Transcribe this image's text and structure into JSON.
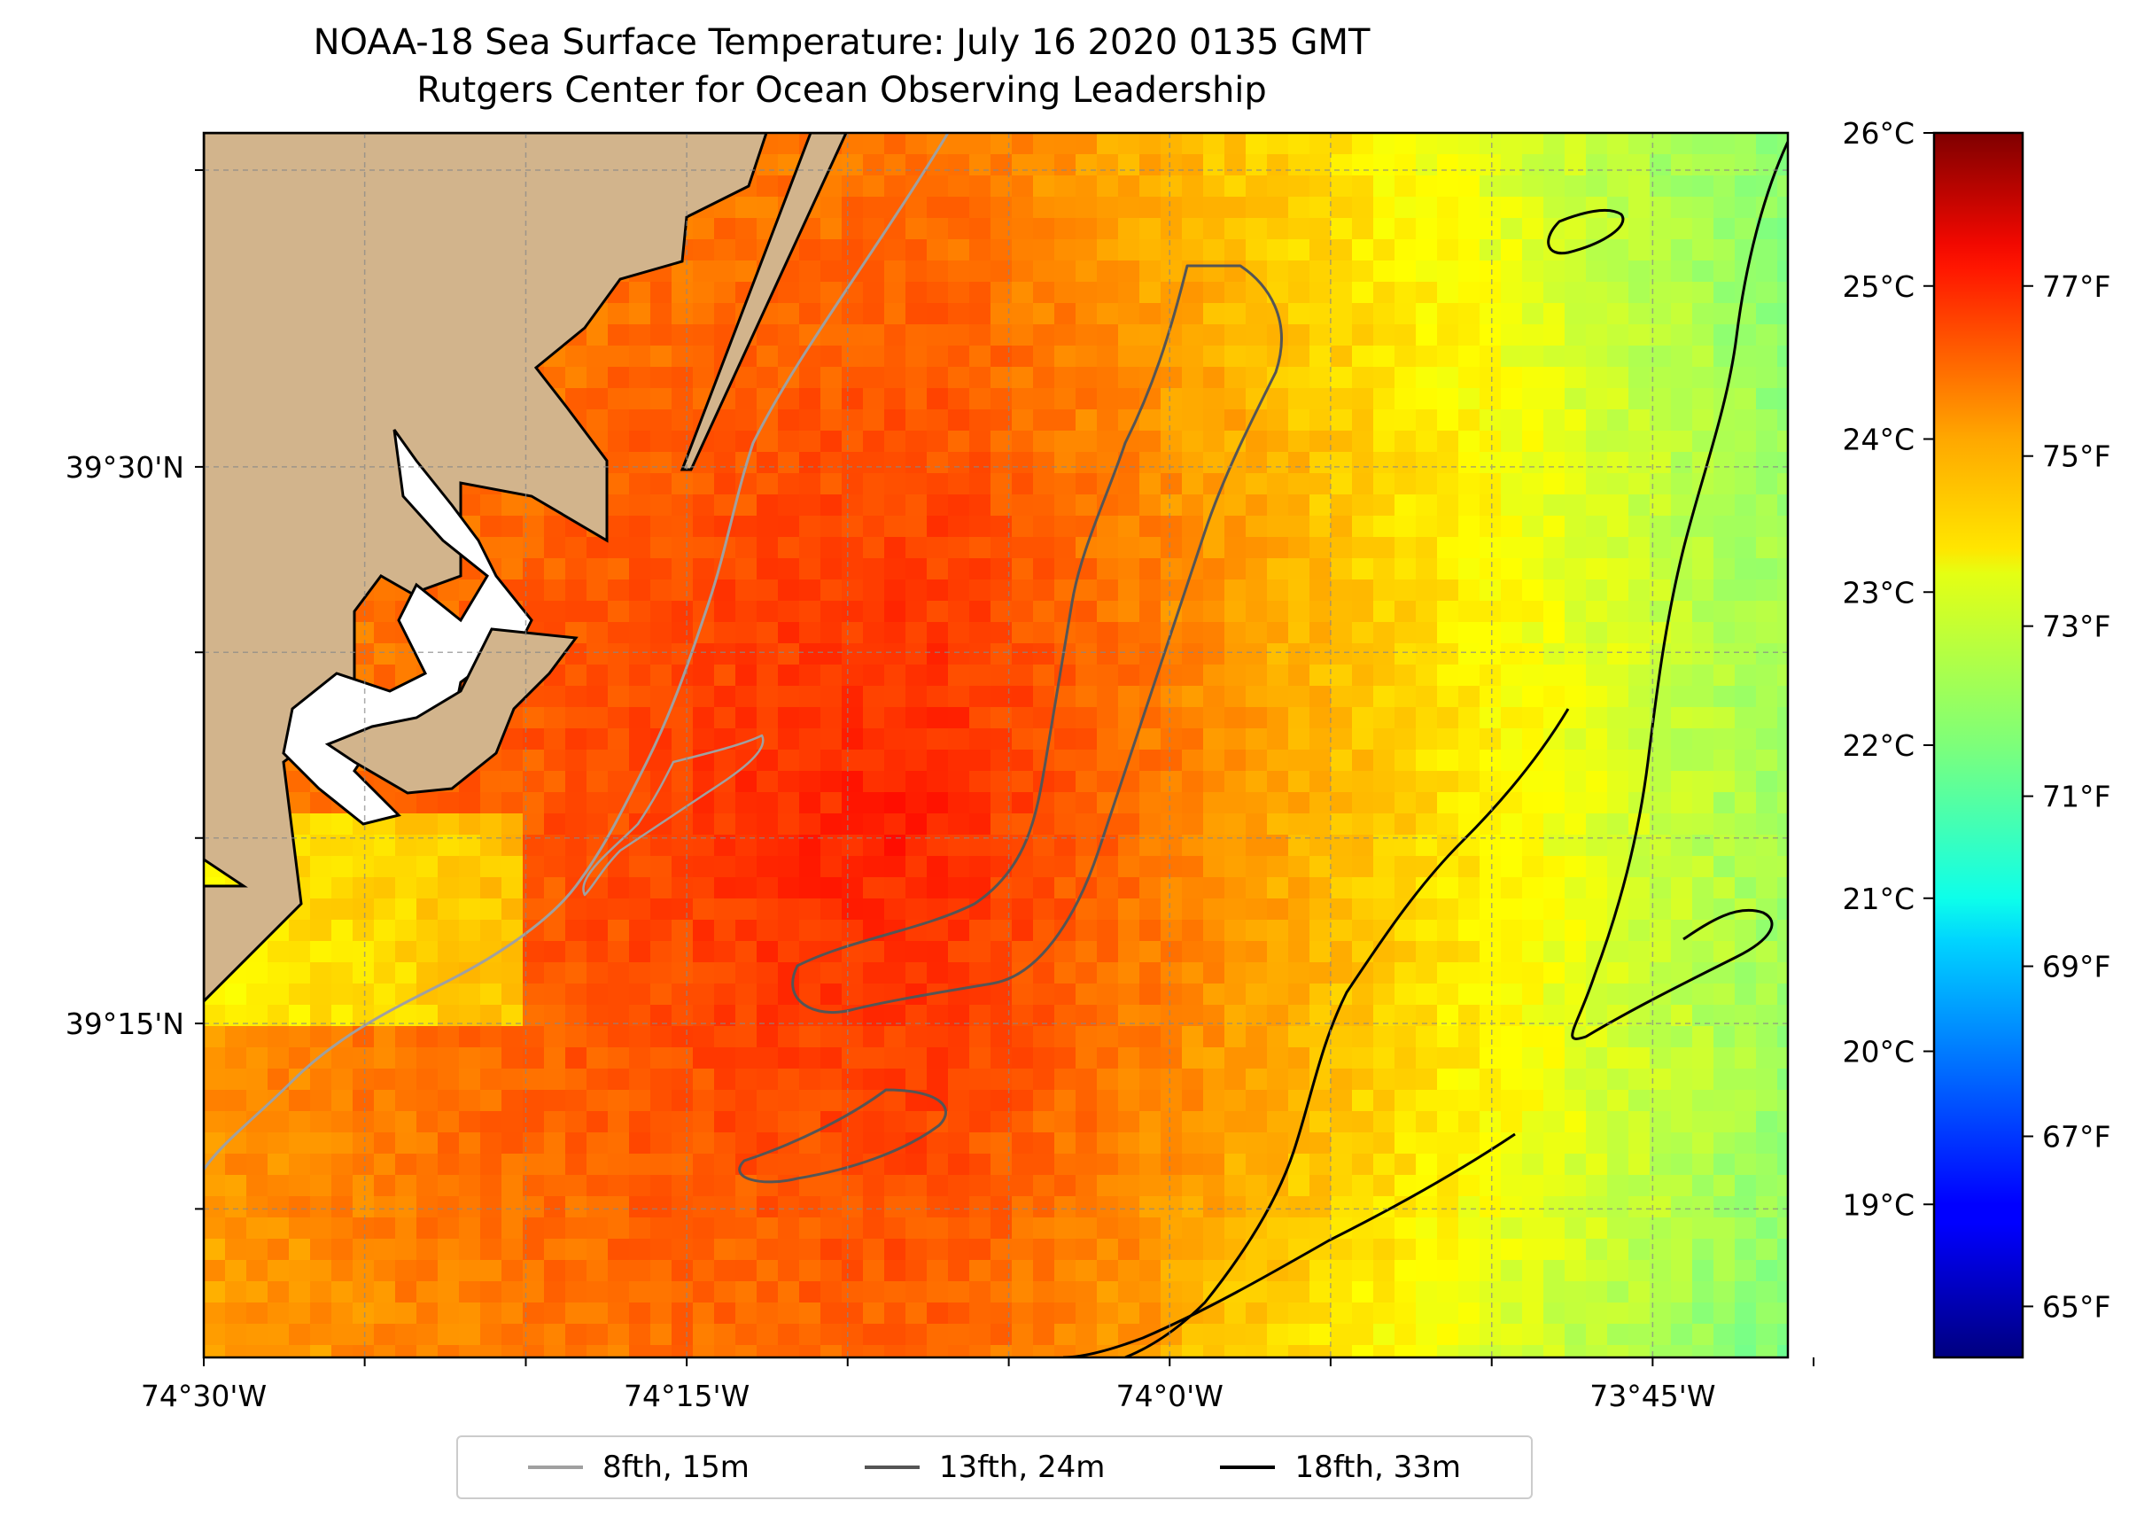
{
  "title": {
    "line1": "NOAA-18 Sea Surface Temperature: July 16 2020 0135 GMT",
    "line2": "Rutgers Center for Ocean Observing Leadership"
  },
  "map": {
    "lon_range": [
      -74.5,
      -73.68
    ],
    "lat_range": [
      39.1,
      39.65
    ],
    "lon_ticks": [
      {
        "value": -74.5,
        "label": "74°30'W"
      },
      {
        "value": -74.25,
        "label": "74°15'W"
      },
      {
        "value": -74.0,
        "label": "74°0'W"
      },
      {
        "value": -73.75,
        "label": "73°45'W"
      }
    ],
    "lat_ticks": [
      {
        "value": 39.5,
        "label": "39°30'N"
      },
      {
        "value": 39.25,
        "label": "39°15'N"
      }
    ],
    "land_color": "#d2b48c",
    "grid": true
  },
  "colorbar": {
    "colormap": "jet",
    "celsius_range": [
      18.0,
      26.0
    ],
    "celsius_ticks": [
      {
        "value": 26,
        "label": "26°C"
      },
      {
        "value": 25,
        "label": "25°C"
      },
      {
        "value": 24,
        "label": "24°C"
      },
      {
        "value": 23,
        "label": "23°C"
      },
      {
        "value": 22,
        "label": "22°C"
      },
      {
        "value": 21,
        "label": "21°C"
      },
      {
        "value": 20,
        "label": "20°C"
      },
      {
        "value": 19,
        "label": "19°C"
      }
    ],
    "fahrenheit_ticks": [
      {
        "value": 77,
        "label": "77°F"
      },
      {
        "value": 75,
        "label": "75°F"
      },
      {
        "value": 73,
        "label": "73°F"
      },
      {
        "value": 71,
        "label": "71°F"
      },
      {
        "value": 69,
        "label": "69°F"
      },
      {
        "value": 67,
        "label": "67°F"
      },
      {
        "value": 65,
        "label": "65°F"
      }
    ]
  },
  "legend": {
    "items": [
      {
        "label": "8fth, 15m",
        "color": "#a0a0a0"
      },
      {
        "label": "13fth, 24m",
        "color": "#555555"
      },
      {
        "label": "18fth, 33m",
        "color": "#000000"
      }
    ]
  }
}
